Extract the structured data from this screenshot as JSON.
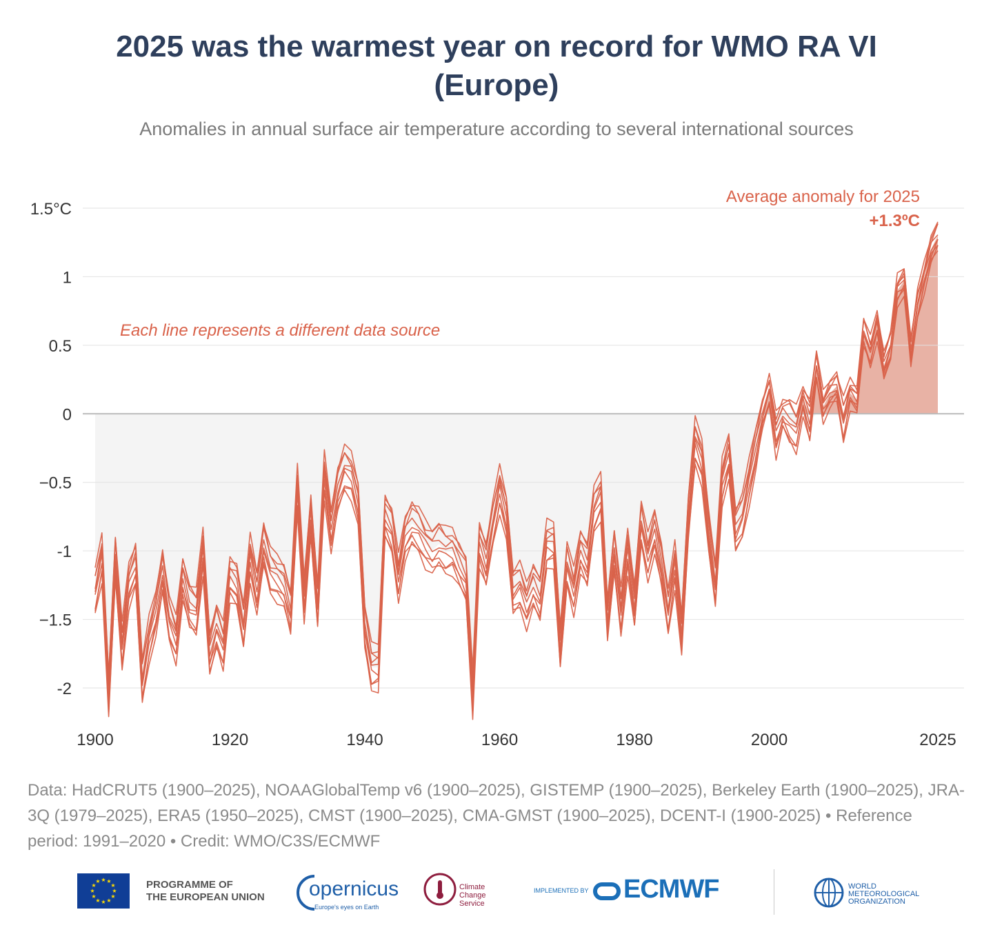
{
  "title": "2025 was the warmest year on record for WMO RA VI",
  "title_line2": "(Europe)",
  "subtitle": "Anomalies in annual surface air temperature according to several international sources",
  "annotation_lines": "Each line represents a different data source",
  "annotation_avg_label": "Average anomaly for 2025",
  "annotation_avg_value": "+1.3ºC",
  "source_text": "Data: HadCRUT5 (1900–2025), NOAAGlobalTemp v6 (1900–2025), GISTEMP (1900–2025), Berkeley Earth (1900–2025), JRA-3Q (1979–2025), ERA5 (1950–2025), CMST (1900–2025), CMA-GMST (1900–2025), DCENT-I (1900-2025) • Reference period: 1991–2020 • Credit: WMO/C3S/ECMWF",
  "logos": {
    "eu_line1": "PROGRAMME OF",
    "eu_line2": "THE EUROPEAN UNION",
    "copernicus_word": "opernicus",
    "copernicus_tagline": "Europe's eyes on Earth",
    "c3s_line1": "Climate",
    "c3s_line2": "Change Service",
    "implemented_by": "IMPLEMENTED BY",
    "ecmwf": "ECMWF",
    "wmo_line1": "WORLD",
    "wmo_line2": "METEOROLOGICAL",
    "wmo_line3": "ORGANIZATION"
  },
  "colors": {
    "title": "#2e3f5c",
    "line": "#d9624a",
    "fill_positive": "#e8b2a5",
    "fill_negative": "#f4f4f4",
    "grid": "#e2e2e2",
    "zero": "#bbbbbb"
  },
  "chart_data": {
    "type": "line",
    "x_tick_labels": [
      "1900",
      "1920",
      "1940",
      "1960",
      "1980",
      "2000",
      "2025"
    ],
    "x_ticks": [
      1900,
      1920,
      1940,
      1960,
      1980,
      2000,
      2025
    ],
    "y_tick_labels": [
      "1.5°C",
      "1",
      "0.5",
      "0",
      "−0.5",
      "-1",
      "−1.5",
      "-2"
    ],
    "y_ticks": [
      1.5,
      1,
      0.5,
      0,
      -0.5,
      -1,
      -1.5,
      -2
    ],
    "xlim": [
      1900,
      2025
    ],
    "ylim": [
      -2.2,
      1.5
    ],
    "grid": true,
    "series_count": 9,
    "x": [
      1900,
      1901,
      1902,
      1903,
      1904,
      1905,
      1906,
      1907,
      1908,
      1909,
      1910,
      1911,
      1912,
      1913,
      1914,
      1915,
      1916,
      1917,
      1918,
      1919,
      1920,
      1921,
      1922,
      1923,
      1924,
      1925,
      1926,
      1927,
      1928,
      1929,
      1930,
      1931,
      1932,
      1933,
      1934,
      1935,
      1936,
      1937,
      1938,
      1939,
      1940,
      1941,
      1942,
      1943,
      1944,
      1945,
      1946,
      1947,
      1948,
      1949,
      1950,
      1951,
      1952,
      1953,
      1954,
      1955,
      1956,
      1957,
      1958,
      1959,
      1960,
      1961,
      1962,
      1963,
      1964,
      1965,
      1966,
      1967,
      1968,
      1969,
      1970,
      1971,
      1972,
      1973,
      1974,
      1975,
      1976,
      1977,
      1978,
      1979,
      1980,
      1981,
      1982,
      1983,
      1984,
      1985,
      1986,
      1987,
      1988,
      1989,
      1990,
      1991,
      1992,
      1993,
      1994,
      1995,
      1996,
      1997,
      1998,
      1999,
      2000,
      2001,
      2002,
      2003,
      2004,
      2005,
      2006,
      2007,
      2008,
      2009,
      2010,
      2011,
      2012,
      2013,
      2014,
      2015,
      2016,
      2017,
      2018,
      2019,
      2020,
      2021,
      2022,
      2023,
      2024,
      2025
    ],
    "mean": [
      -1.3,
      -1.05,
      -2.05,
      -1.05,
      -1.7,
      -1.25,
      -1.1,
      -1.95,
      -1.65,
      -1.45,
      -1.15,
      -1.5,
      -1.65,
      -1.2,
      -1.4,
      -1.45,
      -1.0,
      -1.75,
      -1.55,
      -1.7,
      -1.2,
      -1.25,
      -1.55,
      -1.05,
      -1.3,
      -0.95,
      -1.15,
      -1.2,
      -1.25,
      -1.45,
      -0.55,
      -1.35,
      -0.75,
      -1.4,
      -0.45,
      -0.85,
      -0.55,
      -0.4,
      -0.45,
      -0.65,
      -1.55,
      -1.85,
      -1.85,
      -0.75,
      -0.85,
      -1.2,
      -0.9,
      -0.8,
      -0.85,
      -0.95,
      -1.0,
      -0.95,
      -1.0,
      -1.0,
      -1.1,
      -1.2,
      -2.05,
      -0.95,
      -1.1,
      -0.8,
      -0.55,
      -0.75,
      -1.3,
      -1.25,
      -1.4,
      -1.25,
      -1.35,
      -0.95,
      -0.95,
      -1.7,
      -1.1,
      -1.3,
      -1.0,
      -1.1,
      -0.7,
      -0.6,
      -1.5,
      -1.0,
      -1.45,
      -1.0,
      -1.4,
      -0.8,
      -1.05,
      -0.85,
      -1.1,
      -1.45,
      -1.1,
      -1.6,
      -0.75,
      -0.2,
      -0.35,
      -0.85,
      -1.25,
      -0.5,
      -0.3,
      -0.85,
      -0.75,
      -0.5,
      -0.25,
      0.0,
      0.17,
      -0.15,
      0.0,
      -0.05,
      -0.12,
      0.1,
      -0.05,
      0.35,
      0.05,
      0.15,
      0.2,
      -0.05,
      0.15,
      0.1,
      0.6,
      0.45,
      0.65,
      0.35,
      0.5,
      0.9,
      0.97,
      0.45,
      0.8,
      1.0,
      1.2,
      1.3
    ],
    "series_offsets": [
      0.0,
      0.06,
      -0.06,
      0.1,
      -0.1,
      0.03,
      -0.03,
      0.08,
      -0.08
    ]
  }
}
